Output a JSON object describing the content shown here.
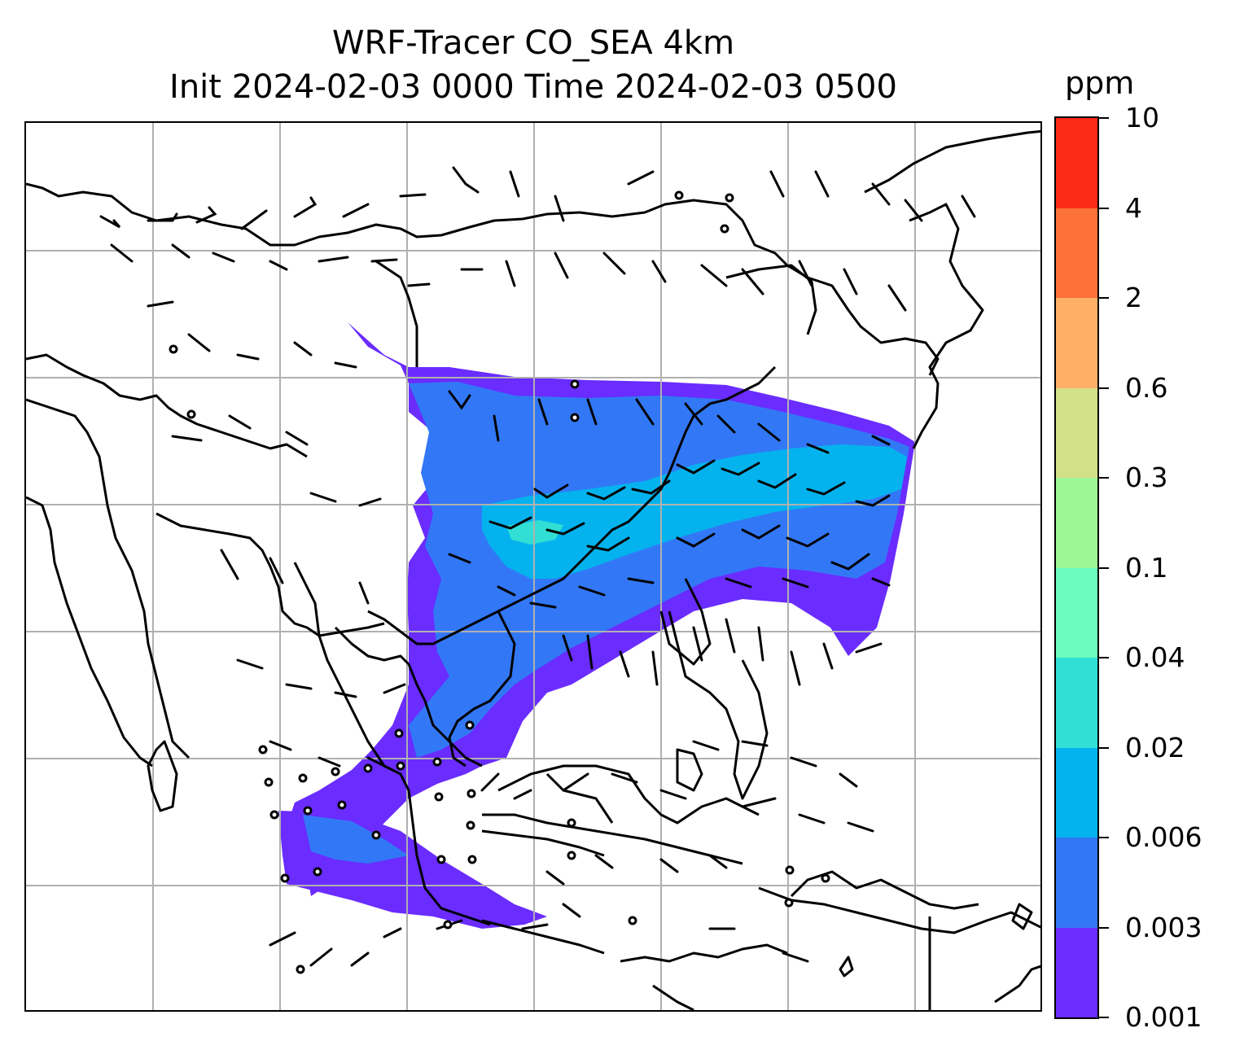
{
  "title": {
    "line1": "WRF-Tracer CO_SEA 4km",
    "line2": "Init 2024-02-03 0000 Time 2024-02-03 0500"
  },
  "colorbar": {
    "unit": "ppm",
    "levels": [
      "0.001",
      "0.003",
      "0.006",
      "0.02",
      "0.04",
      "0.1",
      "0.3",
      "0.6",
      "2",
      "4",
      "10"
    ],
    "colors": [
      "#6a2cff",
      "#3278f6",
      "#04b3ee",
      "#31dfd4",
      "#6bfcbd",
      "#9ef795",
      "#d2e087",
      "#fdb066",
      "#fd7239",
      "#fb2a15"
    ]
  },
  "map": {
    "gridlines": true,
    "grid_color": "#b0b0b0",
    "coastline_color": "#000000",
    "wind_barbs": "black"
  }
}
